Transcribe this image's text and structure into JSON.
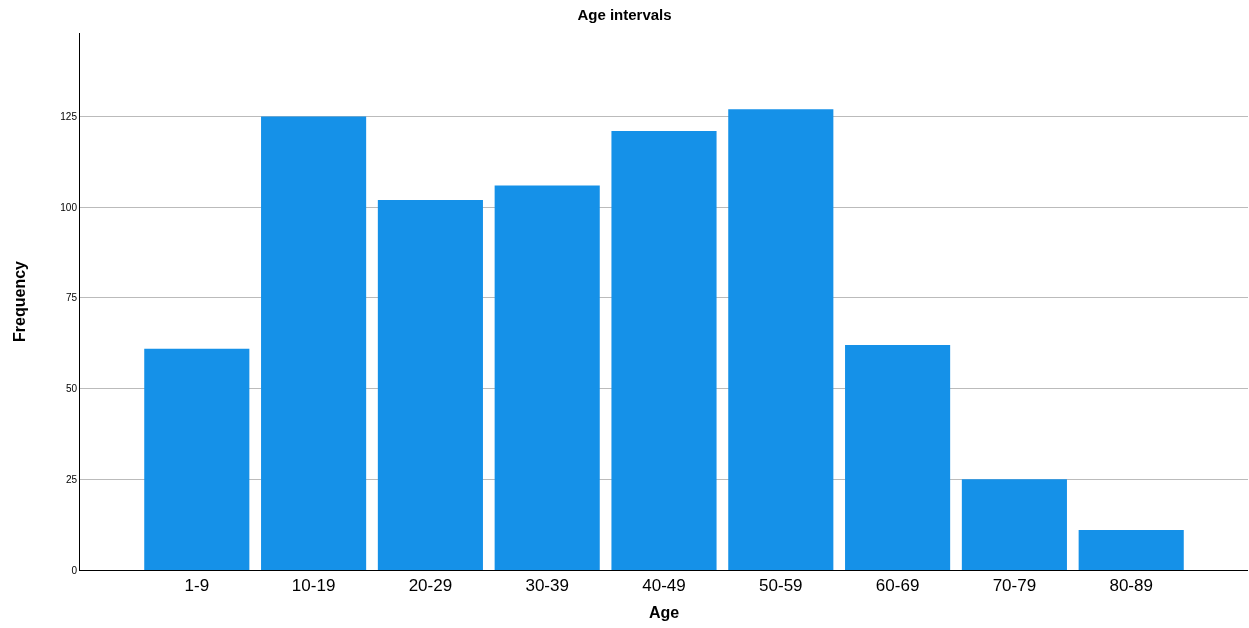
{
  "chart_data": {
    "type": "bar",
    "title": "Age intervals",
    "xlabel": "Age",
    "ylabel": "Frequency",
    "categories": [
      "1-9",
      "10-19",
      "20-29",
      "30-39",
      "40-49",
      "50-59",
      "60-69",
      "70-79",
      "80-89"
    ],
    "values": [
      61,
      125,
      102,
      106,
      121,
      127,
      62,
      25,
      11
    ],
    "color": "#1591e8",
    "ylim": [
      0,
      148
    ],
    "yticks": [
      0,
      25,
      50,
      75,
      100,
      125
    ],
    "grid": "y"
  }
}
